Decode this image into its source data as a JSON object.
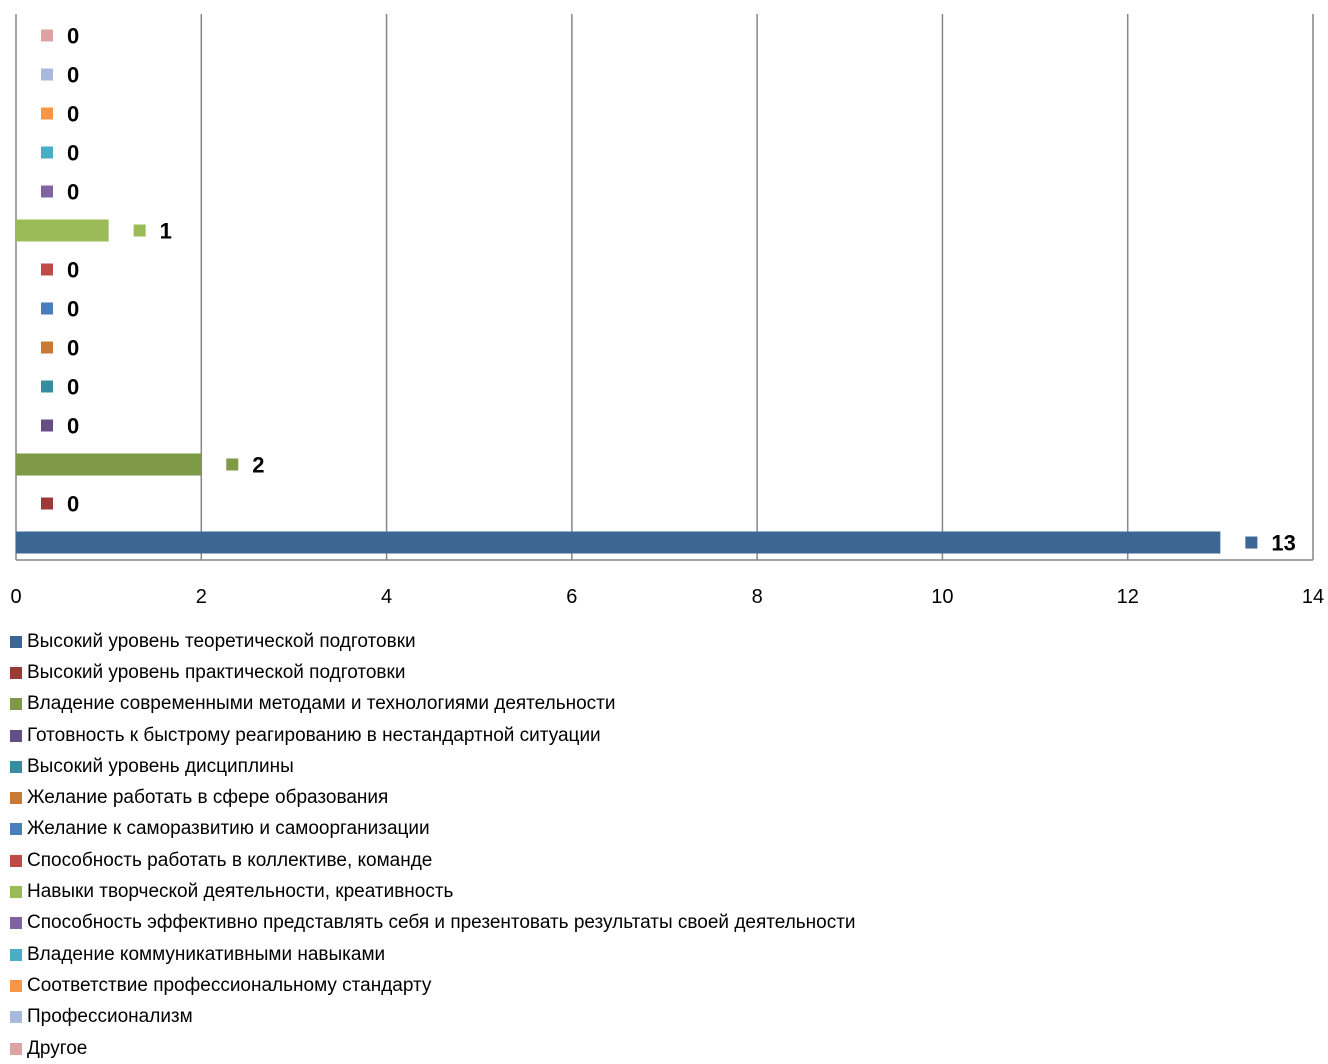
{
  "chart_data": {
    "type": "bar",
    "orientation": "horizontal",
    "title": "",
    "xlabel": "",
    "ylabel": "",
    "xlim": [
      0,
      14
    ],
    "x_ticks": [
      "0",
      "2",
      "4",
      "6",
      "8",
      "10",
      "12",
      "14"
    ],
    "grid": "vertical",
    "legend_position": "bottom",
    "series": [
      {
        "name": "Высокий уровень теоретической подготовки",
        "value": 13,
        "label": "13",
        "color": "#3C6795"
      },
      {
        "name": "Высокий уровень практической подготовки",
        "value": 0,
        "label": "0",
        "color": "#9B3B38"
      },
      {
        "name": "Владение современными методами и технологиями деятельности",
        "value": 2,
        "label": "2",
        "color": "#7E9A49"
      },
      {
        "name": "Готовность к быстрому реагированию в нестандартной ситуации",
        "value": 0,
        "label": "0",
        "color": "#654E85"
      },
      {
        "name": "Высокий уровень дисциплины",
        "value": 0,
        "label": "0",
        "color": "#378C9F"
      },
      {
        "name": "Желание работать в сфере образования",
        "value": 0,
        "label": "0",
        "color": "#C87A35"
      },
      {
        "name": "Желание к саморазвитию и самоорганизации",
        "value": 0,
        "label": "0",
        "color": "#4A7EBB"
      },
      {
        "name": "Способность работать в коллективе, команде",
        "value": 0,
        "label": "0",
        "color": "#BE4B48"
      },
      {
        "name": "Навыки творческой деятельности, креативность",
        "value": 1,
        "label": "1",
        "color": "#9BBB59"
      },
      {
        "name": "Способность эффективно представлять себя и презентовать результаты своей деятельности",
        "value": 0,
        "label": "0",
        "color": "#8064A2"
      },
      {
        "name": "Владение коммуникативными навыками",
        "value": 0,
        "label": "0",
        "color": "#4BACC6"
      },
      {
        "name": "Соответствие профессиональному стандарту",
        "value": 0,
        "label": "0",
        "color": "#F79646"
      },
      {
        "name": "Профессионализм",
        "value": 0,
        "label": "0",
        "color": "#A9B9DB"
      },
      {
        "name": "Другое",
        "value": 0,
        "label": "0",
        "color": "#DDA3A3"
      }
    ]
  }
}
